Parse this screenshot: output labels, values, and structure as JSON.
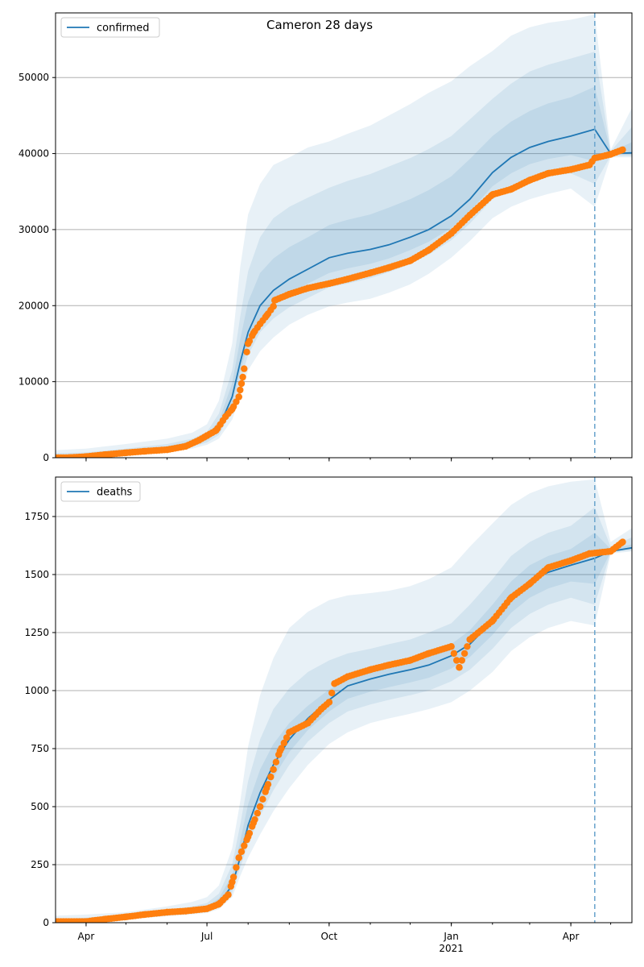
{
  "title": "Cameron 28 days",
  "colors": {
    "line": "#1f77b4",
    "points": "#ff7f0e",
    "band": "#1f77b4",
    "grid": "#b0b0b0",
    "forecast_line": "#6fa8cf"
  },
  "x_ticks": [
    {
      "label": "Apr",
      "date": "2020-04-01"
    },
    {
      "label": "Jul",
      "date": "2020-07-01"
    },
    {
      "label": "Oct",
      "date": "2020-10-01"
    },
    {
      "label": "Jan",
      "date": "2021-01-01",
      "sublabel": "2021"
    },
    {
      "label": "Apr",
      "date": "2021-04-01"
    }
  ],
  "x_range": [
    "2020-03-09",
    "2021-05-17"
  ],
  "forecast_start": "2021-04-19",
  "chart_data": [
    {
      "type": "line",
      "legend": "confirmed",
      "legend_position": "top-left",
      "grid": "horizontal",
      "ylim": [
        0,
        58500
      ],
      "yticks": [
        0,
        10000,
        20000,
        30000,
        40000,
        50000
      ],
      "model": {
        "x": [
          "2020-03-09",
          "2020-04-01",
          "2020-05-01",
          "2020-06-01",
          "2020-06-20",
          "2020-07-01",
          "2020-07-10",
          "2020-07-20",
          "2020-07-26",
          "2020-08-01",
          "2020-08-10",
          "2020-08-20",
          "2020-09-01",
          "2020-09-15",
          "2020-10-01",
          "2020-10-15",
          "2020-11-01",
          "2020-11-15",
          "2020-12-01",
          "2020-12-15",
          "2021-01-01",
          "2021-01-15",
          "2021-02-01",
          "2021-02-15",
          "2021-03-01",
          "2021-03-15",
          "2021-04-01",
          "2021-04-19",
          "2021-05-01",
          "2021-05-17"
        ],
        "y": [
          0,
          150,
          600,
          1200,
          1900,
          2600,
          4000,
          8000,
          12500,
          16500,
          20000,
          22000,
          23500,
          24800,
          26300,
          26900,
          27400,
          28000,
          29000,
          30000,
          31800,
          34000,
          37500,
          39500,
          40800,
          41600,
          42300,
          43200,
          40000,
          40100
        ],
        "band_outer": {
          "lower": [
            0,
            100,
            400,
            800,
            1200,
            1700,
            2500,
            5000,
            8000,
            11500,
            14000,
            15800,
            17500,
            18800,
            19900,
            20400,
            20900,
            21700,
            22800,
            24200,
            26300,
            28500,
            31500,
            33000,
            34000,
            34700,
            35400,
            33000,
            39500,
            39500
          ],
          "upper": [
            1000,
            1200,
            1800,
            2500,
            3300,
            4400,
            7500,
            15000,
            25000,
            32000,
            36000,
            38500,
            39500,
            40800,
            41600,
            42600,
            43700,
            45000,
            46500,
            48000,
            49500,
            51500,
            53500,
            55500,
            56600,
            57200,
            57600,
            58300,
            40500,
            46000
          ]
        },
        "band_mid": {
          "lower": [
            0,
            120,
            480,
            950,
            1450,
            2000,
            3000,
            6200,
            10000,
            13500,
            16500,
            18300,
            19800,
            21000,
            22400,
            22900,
            23600,
            24400,
            25500,
            26700,
            28600,
            30800,
            34000,
            35400,
            36400,
            37000,
            37400,
            36000,
            39700,
            39700
          ],
          "upper": [
            600,
            700,
            1200,
            1800,
            2500,
            3400,
            5800,
            11500,
            18500,
            24500,
            29000,
            31500,
            33000,
            34200,
            35500,
            36400,
            37300,
            38300,
            39400,
            40600,
            42300,
            44500,
            47200,
            49200,
            50800,
            51700,
            52500,
            53400,
            40300,
            43500
          ]
        },
        "band_inner": {
          "lower": [
            0,
            140,
            540,
            1080,
            1680,
            2300,
            3500,
            7100,
            11300,
            15000,
            18200,
            20200,
            21600,
            22900,
            24300,
            24900,
            25500,
            26200,
            27300,
            28400,
            30200,
            32400,
            35700,
            37400,
            38600,
            39300,
            39800,
            39000,
            39850,
            39900
          ],
          "upper": [
            300,
            300,
            800,
            1500,
            2200,
            3000,
            4800,
            9800,
            15500,
            20500,
            24300,
            26200,
            27700,
            29000,
            30600,
            31300,
            32000,
            32900,
            34000,
            35200,
            37000,
            39300,
            42300,
            44200,
            45600,
            46600,
            47400,
            48800,
            40200,
            41500
          ]
        }
      },
      "observed": {
        "x": [
          "2020-03-09",
          "2020-03-20",
          "2020-04-01",
          "2020-04-15",
          "2020-05-01",
          "2020-05-15",
          "2020-06-01",
          "2020-06-15",
          "2020-06-25",
          "2020-07-01",
          "2020-07-08",
          "2020-07-15",
          "2020-07-20",
          "2020-07-25",
          "2020-07-26",
          "2020-07-28",
          "2020-08-01",
          "2020-08-05",
          "2020-08-10",
          "2020-08-15",
          "2020-08-20",
          "2020-08-21",
          "2020-09-01",
          "2020-09-15",
          "2020-10-01",
          "2020-10-15",
          "2020-11-01",
          "2020-11-15",
          "2020-12-01",
          "2020-12-15",
          "2021-01-01",
          "2021-01-15",
          "2021-02-01",
          "2021-02-15",
          "2021-03-01",
          "2021-03-15",
          "2021-04-01",
          "2021-04-15",
          "2021-04-19",
          "2021-05-01",
          "2021-05-10"
        ],
        "y": [
          0,
          20,
          150,
          400,
          650,
          850,
          1050,
          1500,
          2300,
          2900,
          3600,
          5400,
          6400,
          8000,
          8900,
          10600,
          15000,
          16400,
          17600,
          18700,
          19900,
          20700,
          21500,
          22300,
          22900,
          23500,
          24300,
          25000,
          25900,
          27300,
          29500,
          31900,
          34600,
          35300,
          36500,
          37400,
          37900,
          38500,
          39400,
          39900,
          40500
        ]
      }
    },
    {
      "type": "line",
      "legend": "deaths",
      "legend_position": "top-left",
      "grid": "horizontal",
      "ylim": [
        0,
        1920
      ],
      "yticks": [
        0,
        250,
        500,
        750,
        1000,
        1250,
        1500,
        1750
      ],
      "model": {
        "x": [
          "2020-03-09",
          "2020-04-01",
          "2020-05-01",
          "2020-06-01",
          "2020-06-20",
          "2020-07-01",
          "2020-07-10",
          "2020-07-20",
          "2020-07-26",
          "2020-08-01",
          "2020-08-10",
          "2020-08-20",
          "2020-09-01",
          "2020-09-15",
          "2020-10-01",
          "2020-10-15",
          "2020-11-01",
          "2020-11-15",
          "2020-12-01",
          "2020-12-15",
          "2021-01-01",
          "2021-01-15",
          "2021-02-01",
          "2021-02-15",
          "2021-03-01",
          "2021-03-15",
          "2021-04-01",
          "2021-04-19",
          "2021-05-01",
          "2021-05-17"
        ],
        "y": [
          0,
          5,
          20,
          40,
          52,
          60,
          85,
          160,
          280,
          420,
          560,
          680,
          790,
          880,
          960,
          1020,
          1050,
          1070,
          1090,
          1110,
          1150,
          1200,
          1300,
          1400,
          1470,
          1510,
          1540,
          1570,
          1600,
          1615
        ],
        "band_outer": {
          "lower": [
            0,
            3,
            14,
            28,
            36,
            42,
            58,
            110,
            200,
            280,
            380,
            480,
            580,
            680,
            770,
            820,
            860,
            880,
            900,
            920,
            950,
            1000,
            1080,
            1170,
            1230,
            1270,
            1300,
            1280,
            1590,
            1600
          ],
          "upper": [
            30,
            35,
            45,
            70,
            90,
            110,
            160,
            320,
            520,
            760,
            980,
            1140,
            1270,
            1340,
            1390,
            1410,
            1420,
            1430,
            1450,
            1480,
            1530,
            1620,
            1720,
            1800,
            1850,
            1880,
            1900,
            1910,
            1640,
            1700
          ]
        },
        "band_mid": {
          "lower": [
            0,
            4,
            16,
            32,
            42,
            48,
            68,
            130,
            235,
            340,
            460,
            570,
            680,
            780,
            860,
            910,
            940,
            960,
            980,
            1000,
            1040,
            1090,
            1180,
            1270,
            1330,
            1370,
            1400,
            1370,
            1595,
            1605
          ],
          "upper": [
            15,
            22,
            35,
            55,
            70,
            85,
            125,
            250,
            420,
            610,
            790,
            920,
            1010,
            1080,
            1130,
            1160,
            1180,
            1200,
            1220,
            1250,
            1290,
            1370,
            1480,
            1580,
            1640,
            1680,
            1710,
            1790,
            1620,
            1660
          ]
        },
        "band_inner": {
          "lower": [
            0,
            5,
            18,
            36,
            47,
            54,
            76,
            145,
            258,
            380,
            510,
            625,
            735,
            830,
            910,
            965,
            995,
            1015,
            1035,
            1055,
            1095,
            1145,
            1240,
            1335,
            1400,
            1440,
            1470,
            1460,
            1598,
            1610
          ],
          "upper": [
            8,
            12,
            27,
            48,
            60,
            72,
            105,
            205,
            350,
            510,
            660,
            770,
            860,
            935,
            1005,
            1050,
            1080,
            1100,
            1120,
            1150,
            1200,
            1260,
            1370,
            1470,
            1540,
            1580,
            1610,
            1680,
            1610,
            1630
          ]
        }
      },
      "observed": {
        "x": [
          "2020-03-09",
          "2020-04-01",
          "2020-04-15",
          "2020-05-01",
          "2020-05-15",
          "2020-06-01",
          "2020-06-15",
          "2020-07-01",
          "2020-07-10",
          "2020-07-17",
          "2020-07-20",
          "2020-07-25",
          "2020-08-01",
          "2020-08-05",
          "2020-08-10",
          "2020-08-15",
          "2020-08-20",
          "2020-08-25",
          "2020-09-01",
          "2020-09-15",
          "2020-09-25",
          "2020-10-01",
          "2020-10-05",
          "2020-10-15",
          "2020-11-01",
          "2020-11-15",
          "2020-12-01",
          "2020-12-15",
          "2021-01-01",
          "2021-01-07",
          "2021-01-15",
          "2021-02-01",
          "2021-02-15",
          "2021-03-01",
          "2021-03-15",
          "2021-04-01",
          "2021-04-15",
          "2021-05-01",
          "2021-05-10"
        ],
        "y": [
          5,
          5,
          15,
          25,
          35,
          45,
          50,
          60,
          80,
          120,
          175,
          280,
          370,
          430,
          500,
          580,
          660,
          740,
          820,
          860,
          920,
          950,
          1030,
          1060,
          1090,
          1110,
          1130,
          1160,
          1190,
          1100,
          1220,
          1300,
          1400,
          1460,
          1530,
          1560,
          1590,
          1600,
          1640
        ]
      }
    }
  ]
}
